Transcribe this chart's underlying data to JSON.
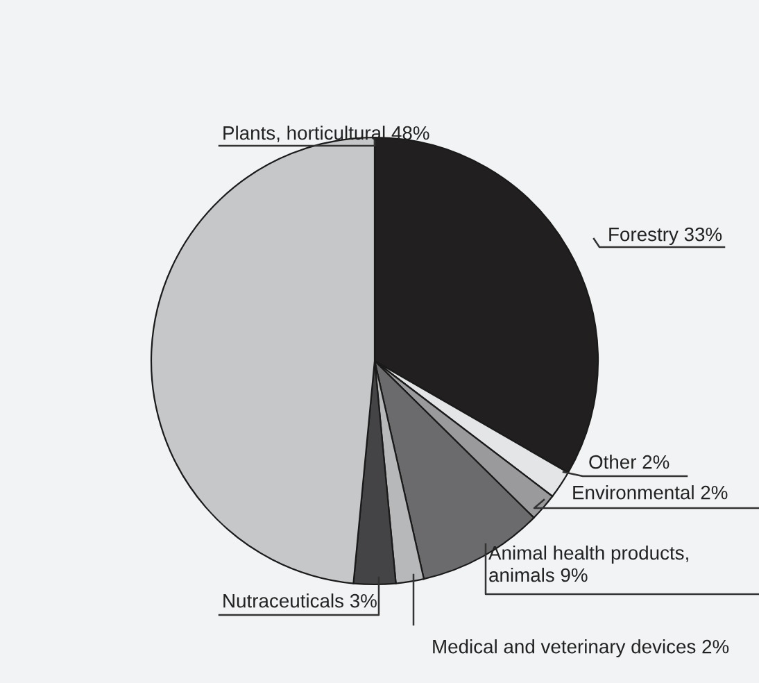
{
  "chart_data": {
    "type": "pie",
    "categories": [
      "Forestry",
      "Other",
      "Environmental",
      "Animal health products,\nanimals",
      "Medical and veterinary devices",
      "Nutraceuticals",
      "Plants, horticultural"
    ],
    "values": [
      33,
      2,
      2,
      9,
      2,
      3,
      48
    ],
    "value_labels": [
      "33%",
      "2%",
      "2%",
      "9%",
      "2%",
      "3%",
      "48%"
    ],
    "colors": [
      "#221f20",
      "#e4e5e7",
      "#9a9a9c",
      "#6b6b6d",
      "#b7b8ba",
      "#444446",
      "#c6c7c9"
    ]
  }
}
